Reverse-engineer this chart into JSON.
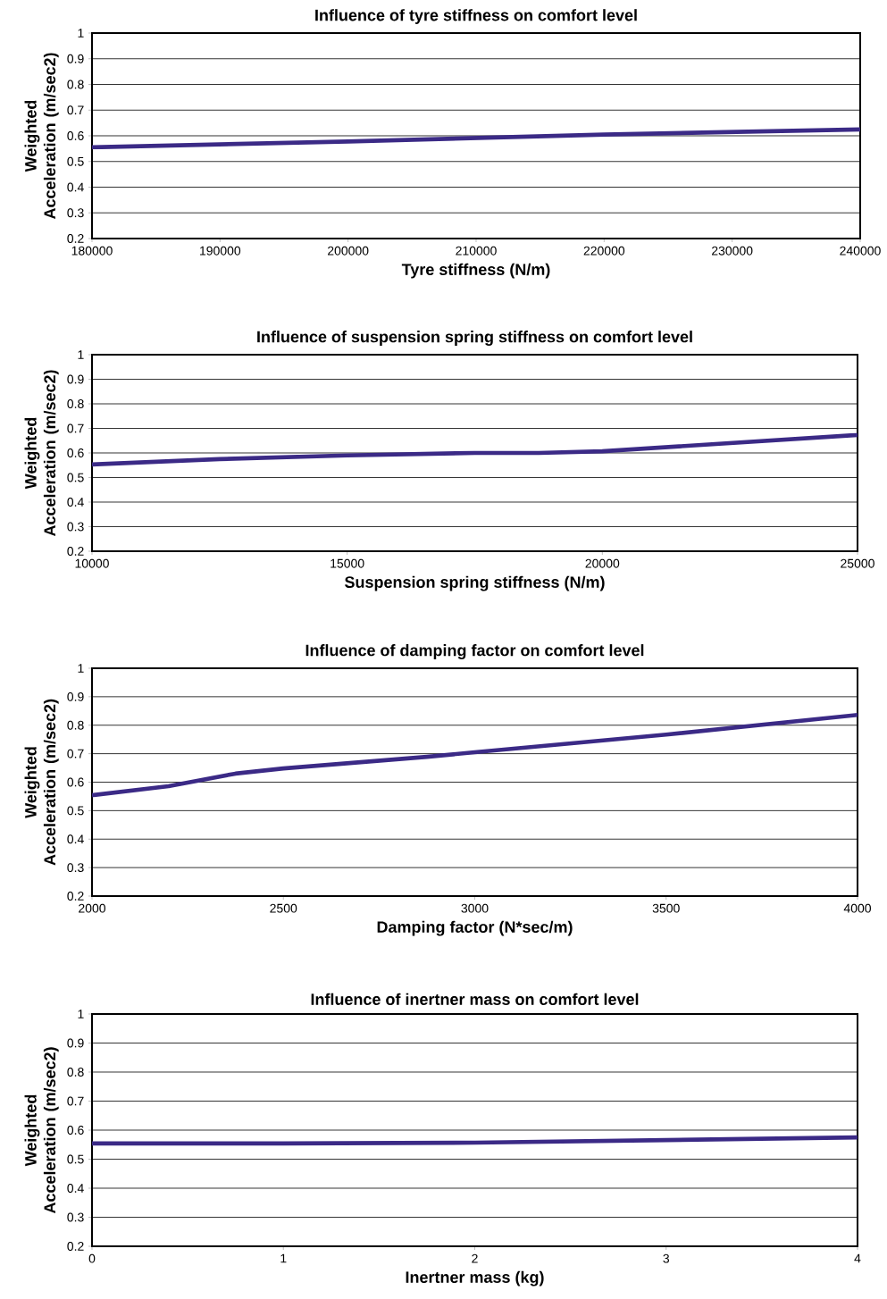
{
  "chart_data": [
    {
      "type": "line",
      "title": "Influence of tyre stiffness on comfort level",
      "xlabel": "Tyre stiffness (N/m)",
      "ylabel": "Weighted Acceleration (m/sec2)",
      "x": [
        180000,
        200000,
        220000,
        240000
      ],
      "series": [
        {
          "color": "#3b2a86",
          "values": [
            0.555,
            0.578,
            0.605,
            0.625
          ]
        }
      ],
      "xlim": [
        180000,
        240000
      ],
      "ylim": [
        0.2,
        1
      ],
      "xticks": [
        180000,
        190000,
        200000,
        210000,
        220000,
        230000,
        240000
      ],
      "yticks": [
        0.2,
        0.3,
        0.4,
        0.5,
        0.6,
        0.7,
        0.8,
        0.9,
        1
      ],
      "grid": "y",
      "marker": "none",
      "line_style": "solid"
    },
    {
      "type": "line",
      "title": "Influence of suspension spring stiffness on comfort level",
      "xlabel": "Suspension spring stiffness (N/m)",
      "ylabel": "Weighted Acceleration (m/sec2)",
      "x": [
        10000,
        12500,
        15000,
        17500,
        18750,
        20000,
        25000
      ],
      "series": [
        {
          "color": "#3b2a86",
          "values": [
            0.553,
            0.575,
            0.59,
            0.6,
            0.6,
            0.607,
            0.673
          ]
        }
      ],
      "xlim": [
        10000,
        25000
      ],
      "ylim": [
        0.2,
        1
      ],
      "xticks": [
        10000,
        15000,
        20000,
        25000
      ],
      "yticks": [
        0.2,
        0.3,
        0.4,
        0.5,
        0.6,
        0.7,
        0.8,
        0.9,
        1
      ],
      "grid": "y",
      "marker": "none",
      "line_style": "solid"
    },
    {
      "type": "line",
      "title": "Influence of damping factor on comfort level",
      "xlabel": "Damping factor (N*sec/m)",
      "ylabel": "Weighted Acceleration (m/sec2)",
      "x": [
        2000,
        2200,
        2375,
        2500,
        2875,
        3000,
        3500,
        4000
      ],
      "series": [
        {
          "color": "#3b2a86",
          "values": [
            0.554,
            0.586,
            0.63,
            0.648,
            0.689,
            0.705,
            0.767,
            0.836
          ]
        }
      ],
      "xlim": [
        2000,
        4000
      ],
      "ylim": [
        0.2,
        1
      ],
      "xticks": [
        2000,
        2500,
        3000,
        3500,
        4000
      ],
      "yticks": [
        0.2,
        0.3,
        0.4,
        0.5,
        0.6,
        0.7,
        0.8,
        0.9,
        1
      ],
      "grid": "y",
      "marker": "none",
      "line_style": "solid"
    },
    {
      "type": "line",
      "title": "Influence of inertner mass on comfort level",
      "xlabel": "Inertner mass (kg)",
      "ylabel": "Weighted Acceleration (m/sec2)",
      "x": [
        0,
        1,
        2,
        3,
        4
      ],
      "series": [
        {
          "color": "#3b2a86",
          "values": [
            0.554,
            0.554,
            0.557,
            0.566,
            0.575
          ]
        }
      ],
      "xlim": [
        0,
        4
      ],
      "ylim": [
        0.2,
        1
      ],
      "xticks": [
        0,
        1,
        2,
        3,
        4
      ],
      "yticks": [
        0.2,
        0.3,
        0.4,
        0.5,
        0.6,
        0.7,
        0.8,
        0.9,
        1
      ],
      "grid": "y",
      "marker": "none",
      "line_style": "solid"
    }
  ]
}
